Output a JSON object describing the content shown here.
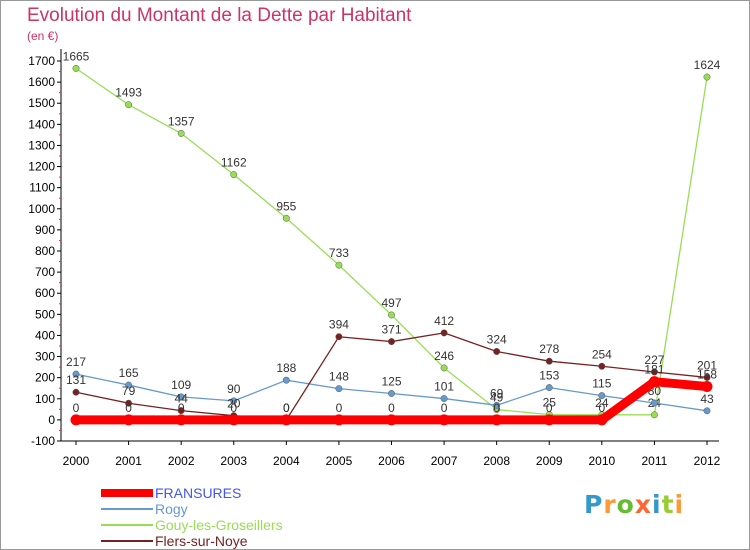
{
  "chart_data": {
    "type": "line",
    "title": "Evolution du Montant de la Dette par Habitant",
    "ylabel": "(en €)",
    "xlabel": "",
    "x": [
      2000,
      2001,
      2002,
      2003,
      2004,
      2005,
      2006,
      2007,
      2008,
      2009,
      2010,
      2011,
      2012
    ],
    "ylim": [
      -100,
      1700
    ],
    "yticks": [
      -100,
      0,
      100,
      200,
      300,
      400,
      500,
      600,
      700,
      800,
      900,
      1000,
      1100,
      1200,
      1300,
      1400,
      1500,
      1600,
      1700
    ],
    "grid": false,
    "legend_position": "bottom-left",
    "series": [
      {
        "name": "Gouy-les-Groseillers",
        "color": "#99dd55",
        "values": [
          1665,
          1493,
          1357,
          1162,
          955,
          733,
          497,
          246,
          49,
          25,
          24,
          24,
          1624
        ],
        "labels": [
          "1665",
          "1493",
          "1357",
          "1162",
          "955",
          "733",
          "497",
          "246",
          "49",
          "25",
          "24",
          "24",
          "1624"
        ]
      },
      {
        "name": "Rogy",
        "color": "#6699cc",
        "values": [
          217,
          165,
          109,
          90,
          188,
          148,
          125,
          101,
          69,
          153,
          115,
          80,
          43
        ],
        "labels": [
          "217",
          "165",
          "109",
          "90",
          "188",
          "148",
          "125",
          "101",
          "69",
          "153",
          "115",
          "80",
          "43"
        ]
      },
      {
        "name": "Flers-sur-Noye",
        "color": "#772222",
        "values": [
          131,
          79,
          44,
          20,
          0,
          394,
          371,
          412,
          324,
          278,
          254,
          227,
          201
        ],
        "labels": [
          "131",
          "79",
          "44",
          "20",
          "0",
          "394",
          "371",
          "412",
          "324",
          "278",
          "254",
          "227",
          "201"
        ]
      },
      {
        "name": "FRANSURES",
        "color": "#ff0000",
        "values": [
          0,
          0,
          0,
          0,
          0,
          0,
          0,
          0,
          0,
          0,
          0,
          181,
          158
        ],
        "labels": [
          "0",
          "0",
          "0",
          "0",
          "0",
          "0",
          "0",
          "0",
          "0",
          "0",
          "0",
          "181",
          "158"
        ]
      }
    ]
  },
  "legend": [
    {
      "name": "FRANSURES",
      "color": "#ff0000",
      "thickness": 8
    },
    {
      "name": "Rogy",
      "color": "#6699cc",
      "thickness": 2
    },
    {
      "name": "Gouy-les-Groseillers",
      "color": "#99dd55",
      "thickness": 2
    },
    {
      "name": "Flers-sur-Noye",
      "color": "#772222",
      "thickness": 2
    }
  ],
  "logo": {
    "text": "Proxiti",
    "letters": [
      "P",
      "r",
      "o",
      "x",
      "i",
      "t",
      "i"
    ],
    "colors": [
      "#3399cc",
      "#ff9933",
      "#66bb33",
      "#ff6633",
      "#3399cc",
      "#99cc33",
      "#ff9933"
    ]
  }
}
